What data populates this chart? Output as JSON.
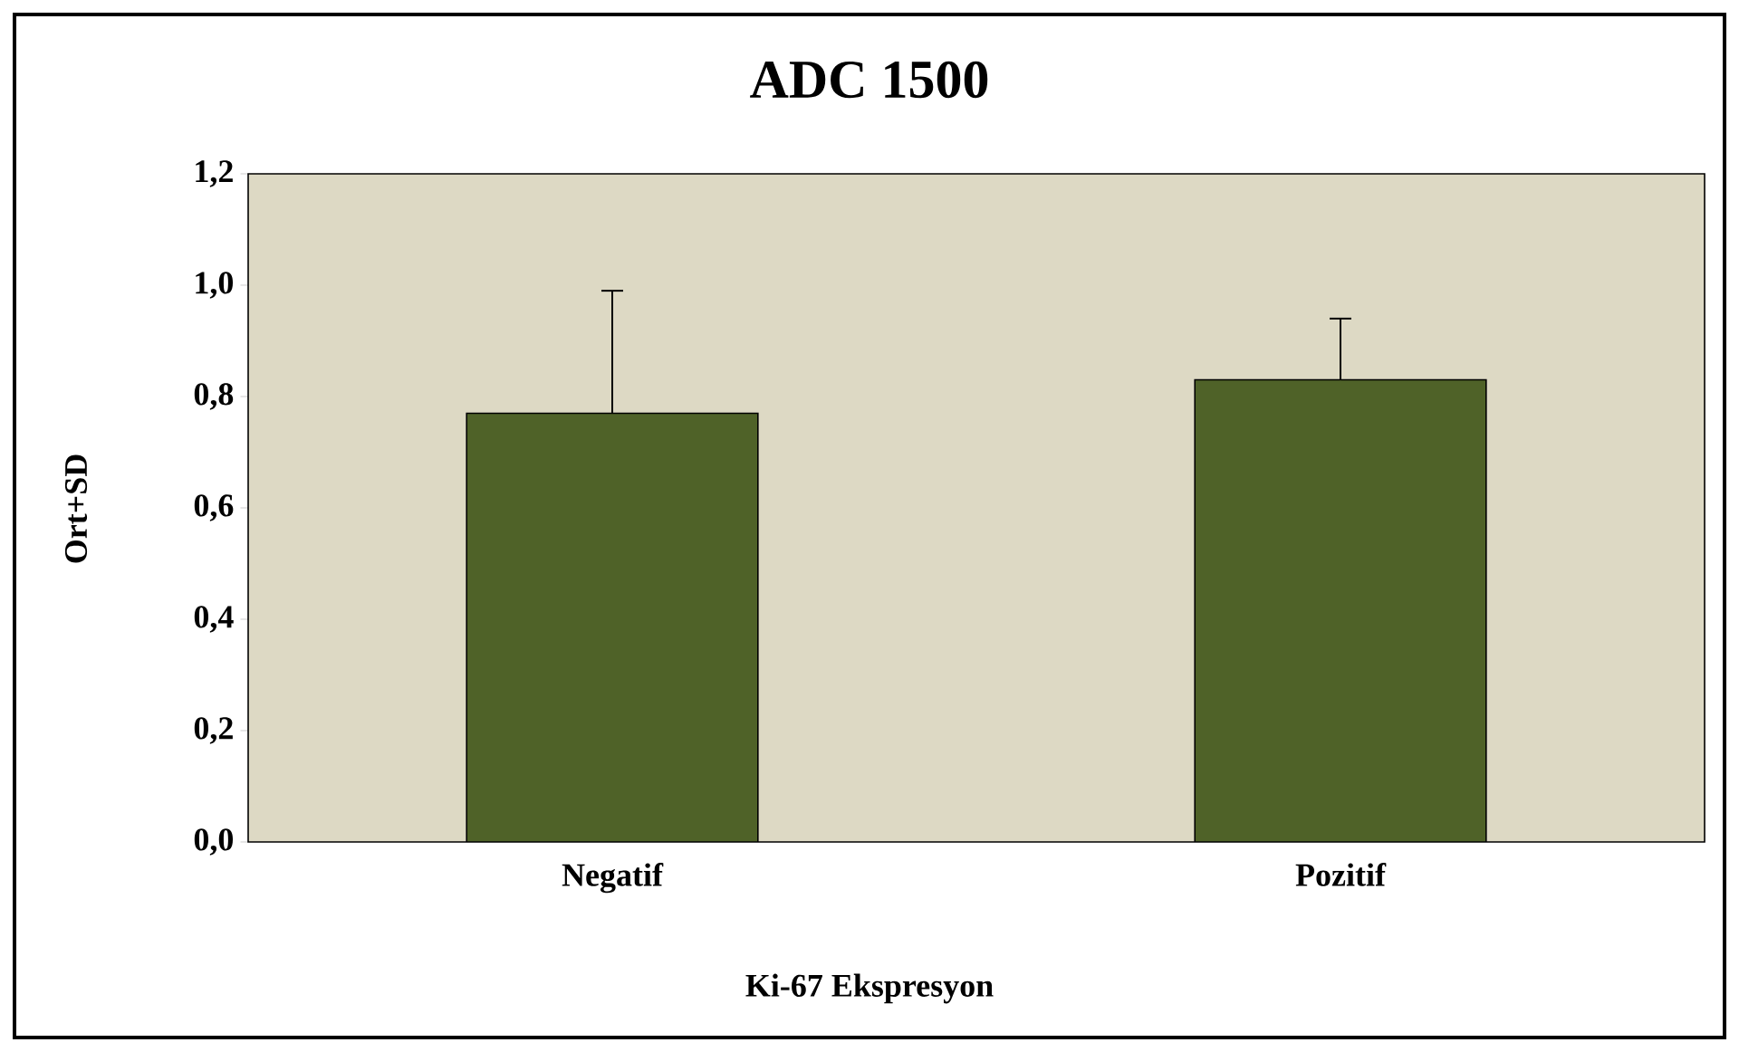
{
  "chart_data": {
    "type": "bar",
    "title": "ADC 1500",
    "xlabel": "Ki-67 Ekspresyon",
    "ylabel": "Ort+SD",
    "categories": [
      "Negatif",
      "Pozitif"
    ],
    "values": [
      0.77,
      0.83
    ],
    "errors": [
      [
        0.77,
        0.99
      ],
      [
        0.83,
        0.94
      ]
    ],
    "color": "#4f6228",
    "ylim": [
      0,
      1.2
    ],
    "yticks": [
      {
        "value": 0,
        "label": "0,0"
      },
      {
        "value": 0.2,
        "label": "0,2"
      },
      {
        "value": 0.4,
        "label": "0,4"
      },
      {
        "value": 0.6,
        "label": "0,6"
      },
      {
        "value": 0.8,
        "label": "0,8"
      },
      {
        "value": 1.0,
        "label": "1,0"
      },
      {
        "value": 1.2,
        "label": "1,2"
      }
    ],
    "grid": false
  }
}
